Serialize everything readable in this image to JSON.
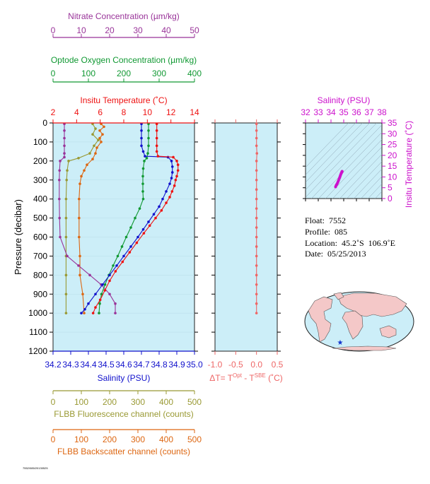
{
  "info": {
    "float_label": "Float:",
    "float_value": "7552",
    "profile_label": "Profile:",
    "profile_value": "085",
    "location_label": "Location:",
    "location_value": "45.2˚S  106.9˚E",
    "date_label": "Date:",
    "date_value": "05/25/2013"
  },
  "footer_tag": "7552/085/20130525",
  "colors": {
    "nitrate": "#993399",
    "oxygen": "#119933",
    "temperature": "#ee1111",
    "salinity": "#1111cc",
    "fluorescence": "#999933",
    "backscatter": "#dd6611",
    "delta": "#ee6666",
    "ts_axis": "#cc11cc",
    "panel_bg": "#cceef8",
    "land": "#f4c8c8",
    "ocean": "#cceef8",
    "float_marker": "#1133cc"
  },
  "chart_data": [
    {
      "type": "line",
      "panel": "main-profile",
      "ylabel": "Pressure (decibar)",
      "y_ticks": [
        0,
        100,
        200,
        300,
        400,
        500,
        600,
        700,
        800,
        900,
        1000,
        1100,
        1200
      ],
      "ylim": [
        0,
        1200
      ],
      "axes": {
        "nitrate": {
          "label": "Nitrate Concentration (µm/kg)",
          "ticks": [
            "0",
            "10",
            "20",
            "30",
            "40",
            "50"
          ],
          "range": [
            0,
            50
          ]
        },
        "oxygen": {
          "label": "Optode Oxygen Concentration (µm/kg)",
          "ticks": [
            "0",
            "100",
            "200",
            "300",
            "400"
          ],
          "range": [
            0,
            400
          ]
        },
        "temperature": {
          "label": "Insitu Temperature (˚C)",
          "ticks": [
            "2",
            "4",
            "6",
            "8",
            "10",
            "12",
            "14"
          ],
          "range": [
            2,
            14
          ]
        },
        "salinity": {
          "label": "Salinity (PSU)",
          "ticks": [
            "34.2",
            "34.3",
            "34.4",
            "34.5",
            "34.6",
            "34.7",
            "34.8",
            "34.9",
            "35.0"
          ],
          "range": [
            34.2,
            35.0
          ]
        },
        "fluorescence": {
          "label": "FLBB Fluorescence channel (counts)",
          "ticks": [
            "0",
            "100",
            "200",
            "300",
            "400",
            "500"
          ],
          "range": [
            0,
            500
          ]
        },
        "backscatter": {
          "label": "FLBB Backscatter channel (counts)",
          "ticks": [
            "0",
            "100",
            "200",
            "300",
            "400",
            "500"
          ],
          "range": [
            0,
            500
          ]
        }
      },
      "series": {
        "temperature": [
          [
            10.8,
            5
          ],
          [
            10.8,
            40
          ],
          [
            10.8,
            80
          ],
          [
            10.8,
            120
          ],
          [
            10.8,
            150
          ],
          [
            10.9,
            175
          ],
          [
            12.2,
            180
          ],
          [
            12.5,
            200
          ],
          [
            12.6,
            220
          ],
          [
            12.6,
            250
          ],
          [
            12.5,
            280
          ],
          [
            12.4,
            300
          ],
          [
            12.3,
            330
          ],
          [
            12.1,
            360
          ],
          [
            11.9,
            390
          ],
          [
            11.6,
            420
          ],
          [
            11.2,
            460
          ],
          [
            10.7,
            500
          ],
          [
            10.2,
            540
          ],
          [
            9.7,
            580
          ],
          [
            9.1,
            630
          ],
          [
            8.5,
            680
          ],
          [
            7.9,
            730
          ],
          [
            7.3,
            780
          ],
          [
            6.8,
            830
          ],
          [
            6.4,
            880
          ],
          [
            6.0,
            930
          ],
          [
            5.6,
            970
          ],
          [
            5.4,
            1000
          ]
        ],
        "salinity": [
          [
            34.7,
            5
          ],
          [
            34.7,
            40
          ],
          [
            34.7,
            80
          ],
          [
            34.7,
            120
          ],
          [
            34.71,
            150
          ],
          [
            34.72,
            175
          ],
          [
            34.85,
            180
          ],
          [
            34.87,
            200
          ],
          [
            34.875,
            230
          ],
          [
            34.875,
            260
          ],
          [
            34.87,
            290
          ],
          [
            34.86,
            320
          ],
          [
            34.84,
            360
          ],
          [
            34.82,
            400
          ],
          [
            34.8,
            440
          ],
          [
            34.77,
            480
          ],
          [
            34.74,
            520
          ],
          [
            34.71,
            560
          ],
          [
            34.68,
            600
          ],
          [
            34.64,
            650
          ],
          [
            34.6,
            700
          ],
          [
            34.56,
            750
          ],
          [
            34.52,
            800
          ],
          [
            34.48,
            850
          ],
          [
            34.44,
            900
          ],
          [
            34.4,
            950
          ],
          [
            34.38,
            980
          ],
          [
            34.36,
            1000
          ]
        ],
        "oxygen": [
          [
            270,
            5
          ],
          [
            270,
            40
          ],
          [
            270,
            80
          ],
          [
            270,
            120
          ],
          [
            268,
            160
          ],
          [
            265,
            185
          ],
          [
            258,
            200
          ],
          [
            255,
            240
          ],
          [
            254,
            280
          ],
          [
            254,
            320
          ],
          [
            254,
            360
          ],
          [
            255,
            400
          ],
          [
            245,
            450
          ],
          [
            232,
            500
          ],
          [
            220,
            550
          ],
          [
            207,
            600
          ],
          [
            195,
            650
          ],
          [
            183,
            700
          ],
          [
            170,
            750
          ],
          [
            158,
            800
          ],
          [
            147,
            850
          ],
          [
            137,
            900
          ],
          [
            132,
            950
          ],
          [
            130,
            1000
          ]
        ],
        "nitrate": [
          [
            4,
            5
          ],
          [
            4,
            40
          ],
          [
            4,
            80
          ],
          [
            4,
            120
          ],
          [
            4,
            160
          ],
          [
            4,
            180
          ],
          [
            2.5,
            200
          ],
          [
            2.3,
            250
          ],
          [
            2.2,
            300
          ],
          [
            2.2,
            400
          ],
          [
            2.3,
            500
          ],
          [
            2.5,
            600
          ],
          [
            5,
            700
          ],
          [
            9,
            750
          ],
          [
            13,
            800
          ],
          [
            17,
            850
          ],
          [
            20,
            900
          ],
          [
            22,
            950
          ],
          [
            22,
            1000
          ]
        ],
        "fluorescence": [
          [
            140,
            5
          ],
          [
            150,
            30
          ],
          [
            140,
            60
          ],
          [
            160,
            90
          ],
          [
            145,
            120
          ],
          [
            130,
            160
          ],
          [
            90,
            185
          ],
          [
            55,
            200
          ],
          [
            50,
            250
          ],
          [
            48,
            300
          ],
          [
            46,
            400
          ],
          [
            46,
            500
          ],
          [
            46,
            600
          ],
          [
            46,
            700
          ],
          [
            46,
            800
          ],
          [
            46,
            900
          ],
          [
            46,
            1000
          ]
        ],
        "backscatter": [
          [
            170,
            5
          ],
          [
            180,
            20
          ],
          [
            165,
            40
          ],
          [
            175,
            60
          ],
          [
            165,
            80
          ],
          [
            170,
            100
          ],
          [
            155,
            130
          ],
          [
            150,
            160
          ],
          [
            140,
            190
          ],
          [
            120,
            220
          ],
          [
            110,
            250
          ],
          [
            100,
            280
          ],
          [
            95,
            320
          ],
          [
            92,
            400
          ],
          [
            92,
            500
          ],
          [
            92,
            600
          ],
          [
            95,
            700
          ],
          [
            95,
            800
          ],
          [
            105,
            900
          ],
          [
            110,
            1000
          ]
        ]
      }
    },
    {
      "type": "line",
      "panel": "delta-t",
      "xlabel": "ΔT= T",
      "xlabel_sup1": "Opt",
      "xlabel_mid": " - T",
      "xlabel_sup2": "SBE",
      "xlabel_end": " (˚C)",
      "x_ticks": [
        "-1.0",
        "-0.5",
        "0.0",
        "0.5"
      ],
      "xlim": [
        -1.0,
        0.5
      ],
      "ylim": [
        0,
        1200
      ],
      "series": [
        {
          "values": [
            [
              0.0,
              5
            ],
            [
              0.0,
              40
            ],
            [
              0.0,
              80
            ],
            [
              0.0,
              120
            ],
            [
              0.01,
              160
            ],
            [
              0.0,
              200
            ],
            [
              0.0,
              250
            ],
            [
              0.0,
              300
            ],
            [
              0.0,
              350
            ],
            [
              0.0,
              400
            ],
            [
              0.0,
              450
            ],
            [
              0.0,
              500
            ],
            [
              0.0,
              550
            ],
            [
              0.0,
              600
            ],
            [
              0.0,
              650
            ],
            [
              0.0,
              700
            ],
            [
              0.0,
              750
            ],
            [
              0.0,
              800
            ],
            [
              0.0,
              850
            ],
            [
              0.0,
              900
            ],
            [
              0.0,
              950
            ],
            [
              0.0,
              1000
            ]
          ]
        }
      ]
    },
    {
      "type": "scatter",
      "panel": "ts-diagram",
      "xlabel": "Salinity (PSU)",
      "ylabel": "Insitu Temperature (˚C)",
      "x_ticks": [
        "32",
        "33",
        "34",
        "35",
        "36",
        "37",
        "38"
      ],
      "y_ticks": [
        "0",
        "5",
        "10",
        "15",
        "20",
        "25",
        "30",
        "35"
      ],
      "xlim": [
        32,
        38
      ],
      "ylim": [
        0,
        35
      ],
      "points": [
        [
          34.36,
          5.4
        ],
        [
          34.4,
          6.0
        ],
        [
          34.44,
          6.4
        ],
        [
          34.48,
          6.8
        ],
        [
          34.52,
          7.3
        ],
        [
          34.56,
          7.9
        ],
        [
          34.6,
          8.5
        ],
        [
          34.64,
          9.1
        ],
        [
          34.68,
          9.7
        ],
        [
          34.71,
          10.2
        ],
        [
          34.74,
          10.7
        ],
        [
          34.77,
          11.2
        ],
        [
          34.8,
          11.6
        ],
        [
          34.82,
          11.9
        ],
        [
          34.84,
          12.1
        ],
        [
          34.86,
          12.3
        ],
        [
          34.87,
          12.4
        ],
        [
          34.875,
          12.6
        ],
        [
          34.87,
          12.5
        ]
      ]
    }
  ]
}
